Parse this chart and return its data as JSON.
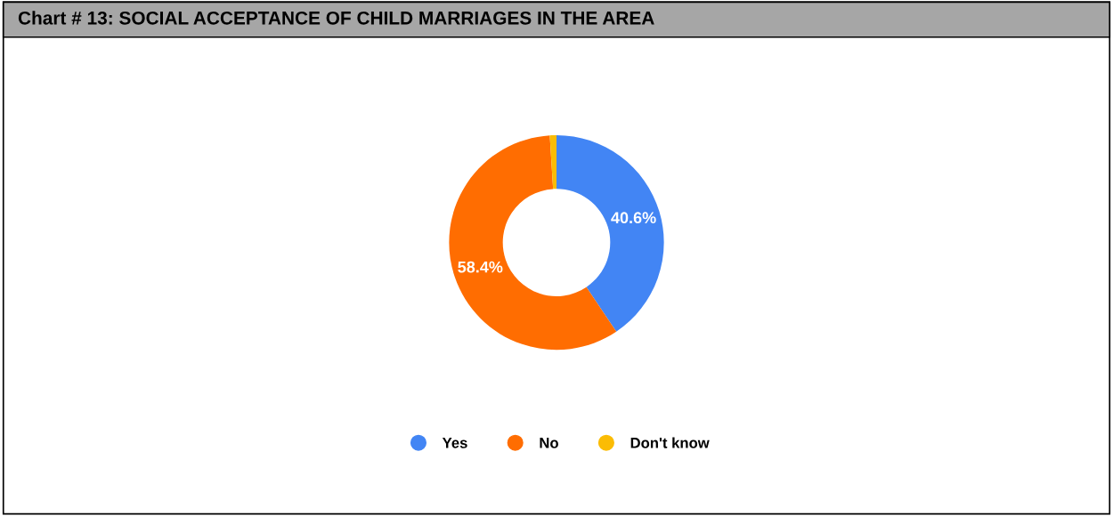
{
  "chart_data": {
    "type": "donut",
    "title": "Chart # 13: SOCIAL ACCEPTANCE OF CHILD MARRIAGES IN THE AREA",
    "categories": [
      "Yes",
      "No",
      "Don't know"
    ],
    "values": [
      40.6,
      58.4,
      1.0
    ],
    "value_labels": [
      "40.6%",
      "58.4%",
      null
    ],
    "colors": [
      "#4285f4",
      "#ff6d01",
      "#fbbc04"
    ],
    "legend": "bottom"
  }
}
